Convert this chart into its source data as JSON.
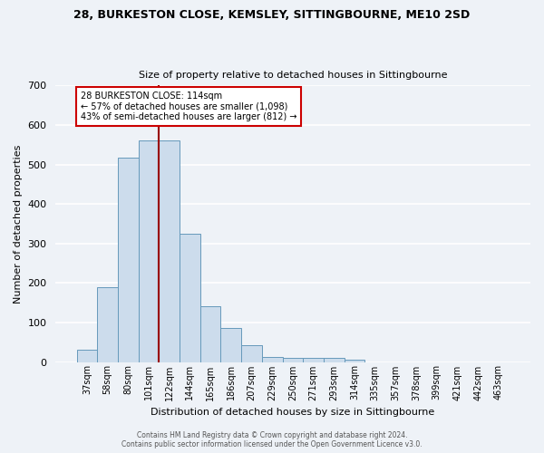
{
  "title1": "28, BURKESTON CLOSE, KEMSLEY, SITTINGBOURNE, ME10 2SD",
  "title2": "Size of property relative to detached houses in Sittingbourne",
  "xlabel": "Distribution of detached houses by size in Sittingbourne",
  "ylabel": "Number of detached properties",
  "bar_labels": [
    "37sqm",
    "58sqm",
    "80sqm",
    "101sqm",
    "122sqm",
    "144sqm",
    "165sqm",
    "186sqm",
    "207sqm",
    "229sqm",
    "250sqm",
    "271sqm",
    "293sqm",
    "314sqm",
    "335sqm",
    "357sqm",
    "378sqm",
    "399sqm",
    "421sqm",
    "442sqm",
    "463sqm"
  ],
  "bar_values": [
    32,
    190,
    517,
    560,
    560,
    325,
    142,
    87,
    43,
    13,
    10,
    10,
    10,
    5,
    0,
    0,
    0,
    0,
    0,
    0,
    0
  ],
  "bar_color": "#ccdcec",
  "bar_edge_color": "#6699bb",
  "vline_color": "#990000",
  "annotation_text": "28 BURKESTON CLOSE: 114sqm\n← 57% of detached houses are smaller (1,098)\n43% of semi-detached houses are larger (812) →",
  "annotation_box_color": "#ffffff",
  "annotation_box_edge": "#cc0000",
  "ylim": [
    0,
    700
  ],
  "yticks": [
    0,
    100,
    200,
    300,
    400,
    500,
    600,
    700
  ],
  "footer": "Contains HM Land Registry data © Crown copyright and database right 2024.\nContains public sector information licensed under the Open Government Licence v3.0.",
  "bg_color": "#eef2f7",
  "grid_color": "#ffffff",
  "title_fontsize": 9,
  "subtitle_fontsize": 8,
  "ylabel_fontsize": 8,
  "xlabel_fontsize": 8,
  "tick_fontsize": 7,
  "footer_fontsize": 5.5
}
